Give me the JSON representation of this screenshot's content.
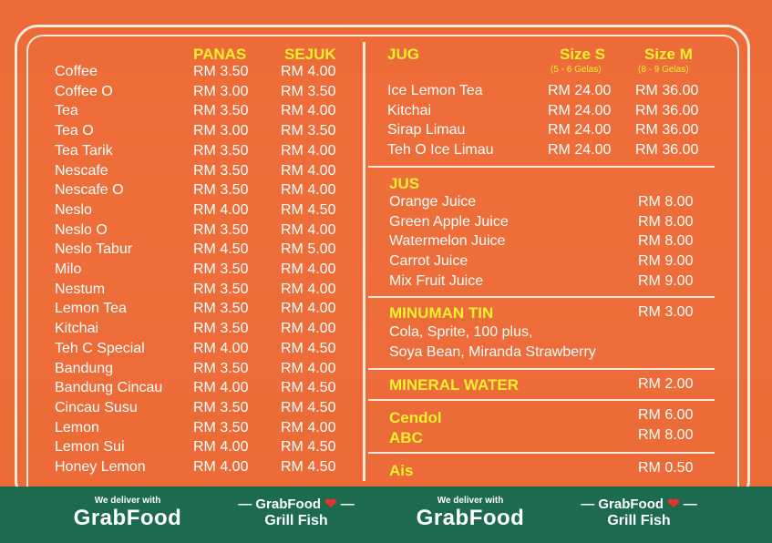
{
  "left": {
    "col_hot": "PANAS",
    "col_cold": "SEJUK",
    "items": [
      {
        "name": "Coffee",
        "hot": "RM 3.50",
        "cold": "RM 4.00"
      },
      {
        "name": "Coffee O",
        "hot": "RM 3.00",
        "cold": "RM 3.50"
      },
      {
        "name": "Tea",
        "hot": "RM 3.50",
        "cold": "RM 4.00"
      },
      {
        "name": "Tea O",
        "hot": "RM 3.00",
        "cold": "RM 3.50"
      },
      {
        "name": "Tea Tarik",
        "hot": "RM 3.50",
        "cold": "RM 4.00"
      },
      {
        "name": "Nescafe",
        "hot": "RM 3.50",
        "cold": "RM 4.00"
      },
      {
        "name": "Nescafe O",
        "hot": "RM 3.50",
        "cold": "RM 4.00"
      },
      {
        "name": "Neslo",
        "hot": "RM 4.00",
        "cold": "RM 4.50"
      },
      {
        "name": "Neslo O",
        "hot": "RM 3.50",
        "cold": "RM 4.00"
      },
      {
        "name": "Neslo Tabur",
        "hot": "RM 4.50",
        "cold": "RM 5.00"
      },
      {
        "name": "Milo",
        "hot": "RM 3.50",
        "cold": "RM 4.00"
      },
      {
        "name": "Nestum",
        "hot": "RM 3.50",
        "cold": "RM 4.00"
      },
      {
        "name": "Lemon Tea",
        "hot": "RM 3.50",
        "cold": "RM 4.00"
      },
      {
        "name": "Kitchai",
        "hot": "RM 3.50",
        "cold": "RM 4.00"
      },
      {
        "name": "Teh C Special",
        "hot": "RM 4.00",
        "cold": "RM 4.50"
      },
      {
        "name": "Bandung",
        "hot": "RM 3.50",
        "cold": "RM 4.00"
      },
      {
        "name": "Bandung Cincau",
        "hot": "RM 4.00",
        "cold": "RM 4.50"
      },
      {
        "name": "Cincau Susu",
        "hot": "RM 3.50",
        "cold": "RM 4.50"
      },
      {
        "name": "Lemon",
        "hot": "RM 3.50",
        "cold": "RM 4.00"
      },
      {
        "name": "Lemon Sui",
        "hot": "RM 4.00",
        "cold": "RM 4.50"
      },
      {
        "name": "Honey Lemon",
        "hot": "RM 4.00",
        "cold": "RM 4.50"
      }
    ]
  },
  "jug": {
    "title": "JUG",
    "size_s": "Size S",
    "size_s_note": "(5 - 6 Gelas)",
    "size_m": "Size M",
    "size_m_note": "(8 - 9 Gelas)",
    "items": [
      {
        "name": "Ice Lemon Tea",
        "s": "RM 24.00",
        "m": "RM 36.00"
      },
      {
        "name": "Kitchai",
        "s": "RM 24.00",
        "m": "RM 36.00"
      },
      {
        "name": "Sirap Limau",
        "s": "RM 24.00",
        "m": "RM 36.00"
      },
      {
        "name": "Teh O Ice Limau",
        "s": "RM 24.00",
        "m": "RM 36.00"
      }
    ]
  },
  "jus": {
    "title": "JUS",
    "items": [
      {
        "name": "Orange Juice",
        "price": "RM 8.00"
      },
      {
        "name": "Green Apple Juice",
        "price": "RM 8.00"
      },
      {
        "name": "Watermelon Juice",
        "price": "RM 8.00"
      },
      {
        "name": "Carrot Juice",
        "price": "RM 9.00"
      },
      {
        "name": "Mix Fruit Juice",
        "price": "RM 9.00"
      }
    ]
  },
  "tin": {
    "title": "MINUMAN TIN",
    "price": "RM 3.00",
    "line1": "Cola, Sprite, 100 plus,",
    "line2": "Soya Bean, Miranda Strawberry"
  },
  "water": {
    "title": "MINERAL WATER",
    "price": "RM 2.00"
  },
  "cendol": {
    "title": "Cendol",
    "price": "RM 6.00"
  },
  "abc": {
    "title": "ABC",
    "price": "RM 8.00"
  },
  "ais": {
    "title": "Ais",
    "price": "RM 0.50"
  },
  "footer": {
    "deliver": "We deliver with",
    "grabfood": "GrabFood",
    "grabfood_small": "GrabFood",
    "grill": "Grill Fish",
    "heart": "❤"
  },
  "colors": {
    "board": "#ee6e3a",
    "accent": "#f6f12e",
    "footer": "#1d6b4e"
  }
}
